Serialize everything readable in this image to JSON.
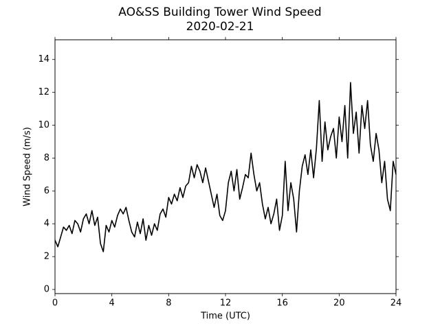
{
  "chart_data": {
    "type": "line",
    "title": "AO&SS Building Tower Wind Speed",
    "subtitle": "2020-02-21",
    "x_label": "Time (UTC)",
    "y_label": "Wind Speed (m/s)",
    "x": [
      0,
      0.2,
      0.4,
      0.6,
      0.8,
      1,
      1.2,
      1.4,
      1.6,
      1.8,
      2,
      2.2,
      2.4,
      2.6,
      2.8,
      3,
      3.2,
      3.4,
      3.6,
      3.8,
      4,
      4.2,
      4.4,
      4.6,
      4.8,
      5,
      5.2,
      5.4,
      5.6,
      5.8,
      6,
      6.2,
      6.4,
      6.6,
      6.8,
      7,
      7.2,
      7.4,
      7.6,
      7.8,
      8,
      8.2,
      8.4,
      8.6,
      8.8,
      9,
      9.2,
      9.4,
      9.6,
      9.8,
      10,
      10.2,
      10.4,
      10.6,
      10.8,
      11,
      11.2,
      11.4,
      11.6,
      11.8,
      12,
      12.2,
      12.4,
      12.6,
      12.8,
      13,
      13.2,
      13.4,
      13.6,
      13.8,
      14,
      14.2,
      14.4,
      14.6,
      14.8,
      15,
      15.2,
      15.4,
      15.6,
      15.8,
      16,
      16.2,
      16.4,
      16.6,
      16.8,
      17,
      17.2,
      17.4,
      17.6,
      17.8,
      18,
      18.2,
      18.4,
      18.6,
      18.8,
      19,
      19.2,
      19.4,
      19.6,
      19.8,
      20,
      20.2,
      20.4,
      20.6,
      20.8,
      21,
      21.2,
      21.4,
      21.6,
      21.8,
      22,
      22.2,
      22.4,
      22.6,
      22.8,
      23,
      23.2,
      23.4,
      23.6,
      23.8,
      24
    ],
    "series": [
      {
        "name": "Wind Speed",
        "color": "#000000",
        "values": [
          3.0,
          2.6,
          3.2,
          3.8,
          3.6,
          3.9,
          3.4,
          4.2,
          4.0,
          3.5,
          4.3,
          4.6,
          4.0,
          4.8,
          3.9,
          4.4,
          2.8,
          2.3,
          3.9,
          3.5,
          4.2,
          3.8,
          4.5,
          4.9,
          4.6,
          5.0,
          4.2,
          3.5,
          3.2,
          4.1,
          3.4,
          4.3,
          3.0,
          3.9,
          3.3,
          4.0,
          3.6,
          4.6,
          4.9,
          4.4,
          5.6,
          5.2,
          5.8,
          5.4,
          6.2,
          5.6,
          6.3,
          6.5,
          7.5,
          6.8,
          7.6,
          7.2,
          6.5,
          7.4,
          6.6,
          5.8,
          5.0,
          5.8,
          4.5,
          4.2,
          4.8,
          6.5,
          7.2,
          6.0,
          7.3,
          5.5,
          6.2,
          7.0,
          6.8,
          8.3,
          7.0,
          6.0,
          6.5,
          5.2,
          4.3,
          5.0,
          4.0,
          4.6,
          5.5,
          3.6,
          4.5,
          7.8,
          4.8,
          6.5,
          5.5,
          3.5,
          6.0,
          7.5,
          8.2,
          7.0,
          8.5,
          6.8,
          8.6,
          11.5,
          7.8,
          10.2,
          8.5,
          9.3,
          9.8,
          8.0,
          10.5,
          9.0,
          11.2,
          8.0,
          12.6,
          9.5,
          10.8,
          8.3,
          11.2,
          9.8,
          11.5,
          8.8,
          7.8,
          9.5,
          8.5,
          6.5,
          7.8,
          5.5,
          4.8,
          7.8,
          7.0
        ]
      }
    ],
    "xlim": [
      0,
      24
    ],
    "xticks": [
      0,
      4,
      8,
      12,
      16,
      20,
      24
    ],
    "ylim": [
      -0.25,
      15.2
    ],
    "yticks": [
      0,
      2,
      4,
      6,
      8,
      10,
      12,
      14
    ],
    "grid": false
  }
}
